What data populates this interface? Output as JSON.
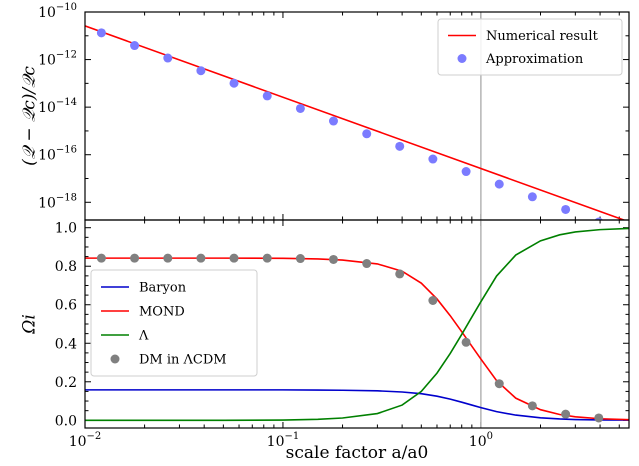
{
  "chart_data": [
    {
      "type": "line",
      "panel": "top",
      "ylabel": "(𝒬 − 𝒬c)/𝒬c",
      "xscale": "log",
      "yscale": "log",
      "xlim": [
        0.01,
        5.6
      ],
      "ylim": [
        1.8e-19,
        1e-10
      ],
      "y_ticks": [
        {
          "value": 1e-10,
          "mantissa": "10",
          "exp": "−10"
        },
        {
          "value": 1e-12,
          "mantissa": "10",
          "exp": "−12"
        },
        {
          "value": 1e-14,
          "mantissa": "10",
          "exp": "−14"
        },
        {
          "value": 1e-16,
          "mantissa": "10",
          "exp": "−16"
        },
        {
          "value": 1e-18,
          "mantissa": "10",
          "exp": "−18"
        }
      ],
      "vline_x": 1.0,
      "legend": {
        "position": "top-right"
      },
      "series": [
        {
          "name": "Numerical result",
          "kind": "line",
          "color": "#ff0000",
          "x": [
            0.01,
            5.6
          ],
          "y": [
            2.6e-11,
            1.5e-19
          ]
        },
        {
          "name": "Approximation",
          "kind": "scatter",
          "color": "#7b7bff",
          "x": [
            0.0121,
            0.0178,
            0.0262,
            0.0385,
            0.0566,
            0.0833,
            0.1225,
            0.18,
            0.265,
            0.389,
            0.572,
            0.842,
            1.238,
            1.82,
            2.68,
            3.94
          ],
          "y": [
            1.33e-11,
            3.9e-12,
            1.16e-12,
            3.4e-13,
            1.01e-13,
            2.97e-14,
            8.8e-15,
            2.6e-15,
            7.6e-16,
            2.25e-16,
            6.6e-17,
            1.96e-17,
            5.8e-18,
            1.7e-18,
            5e-19,
            1.48e-19
          ]
        }
      ]
    },
    {
      "type": "line",
      "panel": "bottom",
      "xlabel": "scale factor a/a0",
      "ylabel": "Ωi",
      "xscale": "log",
      "xlim": [
        0.01,
        5.6
      ],
      "ylim": [
        -0.04,
        1.04
      ],
      "x_ticks": [
        {
          "value": 0.01,
          "mantissa": "10",
          "exp": "−2"
        },
        {
          "value": 0.1,
          "mantissa": "10",
          "exp": "−1"
        },
        {
          "value": 1,
          "mantissa": "10",
          "exp": "0"
        }
      ],
      "y_ticks": [
        0.0,
        0.2,
        0.4,
        0.6,
        0.8,
        1.0
      ],
      "y_tick_labels": [
        "0.0",
        "0.2",
        "0.4",
        "0.6",
        "0.8",
        "1.0"
      ],
      "vline_x": 1.0,
      "legend": {
        "position": "center-left"
      },
      "series": [
        {
          "name": "Baryon",
          "kind": "line",
          "color": "#0000cc",
          "x": [
            0.01,
            0.05,
            0.1,
            0.15,
            0.2,
            0.3,
            0.4,
            0.5,
            0.6,
            0.7,
            0.8,
            0.9,
            1.0,
            1.2,
            1.5,
            2.0,
            2.5,
            3.0,
            4.0,
            5.6
          ],
          "y": [
            0.158,
            0.158,
            0.158,
            0.157,
            0.156,
            0.153,
            0.147,
            0.138,
            0.125,
            0.11,
            0.094,
            0.079,
            0.066,
            0.045,
            0.027,
            0.013,
            0.007,
            0.004,
            0.002,
            0.001
          ]
        },
        {
          "name": "MOND",
          "kind": "line",
          "color": "#ff0000",
          "x": [
            0.01,
            0.05,
            0.1,
            0.15,
            0.2,
            0.3,
            0.4,
            0.5,
            0.6,
            0.7,
            0.8,
            0.9,
            1.0,
            1.2,
            1.5,
            2.0,
            2.5,
            3.0,
            4.0,
            5.6
          ],
          "y": [
            0.842,
            0.842,
            0.841,
            0.838,
            0.832,
            0.812,
            0.774,
            0.712,
            0.63,
            0.543,
            0.46,
            0.385,
            0.318,
            0.206,
            0.115,
            0.055,
            0.03,
            0.018,
            0.008,
            0.003
          ]
        },
        {
          "name": "Λ",
          "kind": "line",
          "color": "#008000",
          "x": [
            0.01,
            0.05,
            0.1,
            0.15,
            0.2,
            0.3,
            0.4,
            0.5,
            0.6,
            0.7,
            0.8,
            0.9,
            1.0,
            1.2,
            1.5,
            2.0,
            2.5,
            3.0,
            4.0,
            5.6
          ],
          "y": [
            0.0,
            0.0,
            0.001,
            0.005,
            0.012,
            0.035,
            0.079,
            0.15,
            0.245,
            0.347,
            0.446,
            0.536,
            0.616,
            0.749,
            0.858,
            0.932,
            0.963,
            0.978,
            0.99,
            0.996
          ]
        },
        {
          "name": "DM in ΛCDM",
          "kind": "scatter",
          "color": "#808080",
          "x": [
            0.0121,
            0.0178,
            0.0262,
            0.0385,
            0.0566,
            0.0833,
            0.1225,
            0.18,
            0.265,
            0.389,
            0.572,
            0.842,
            1.238,
            1.82,
            2.68,
            3.94
          ],
          "y": [
            0.842,
            0.842,
            0.842,
            0.842,
            0.842,
            0.842,
            0.84,
            0.835,
            0.814,
            0.76,
            0.622,
            0.405,
            0.19,
            0.075,
            0.032,
            0.012
          ]
        }
      ]
    }
  ]
}
